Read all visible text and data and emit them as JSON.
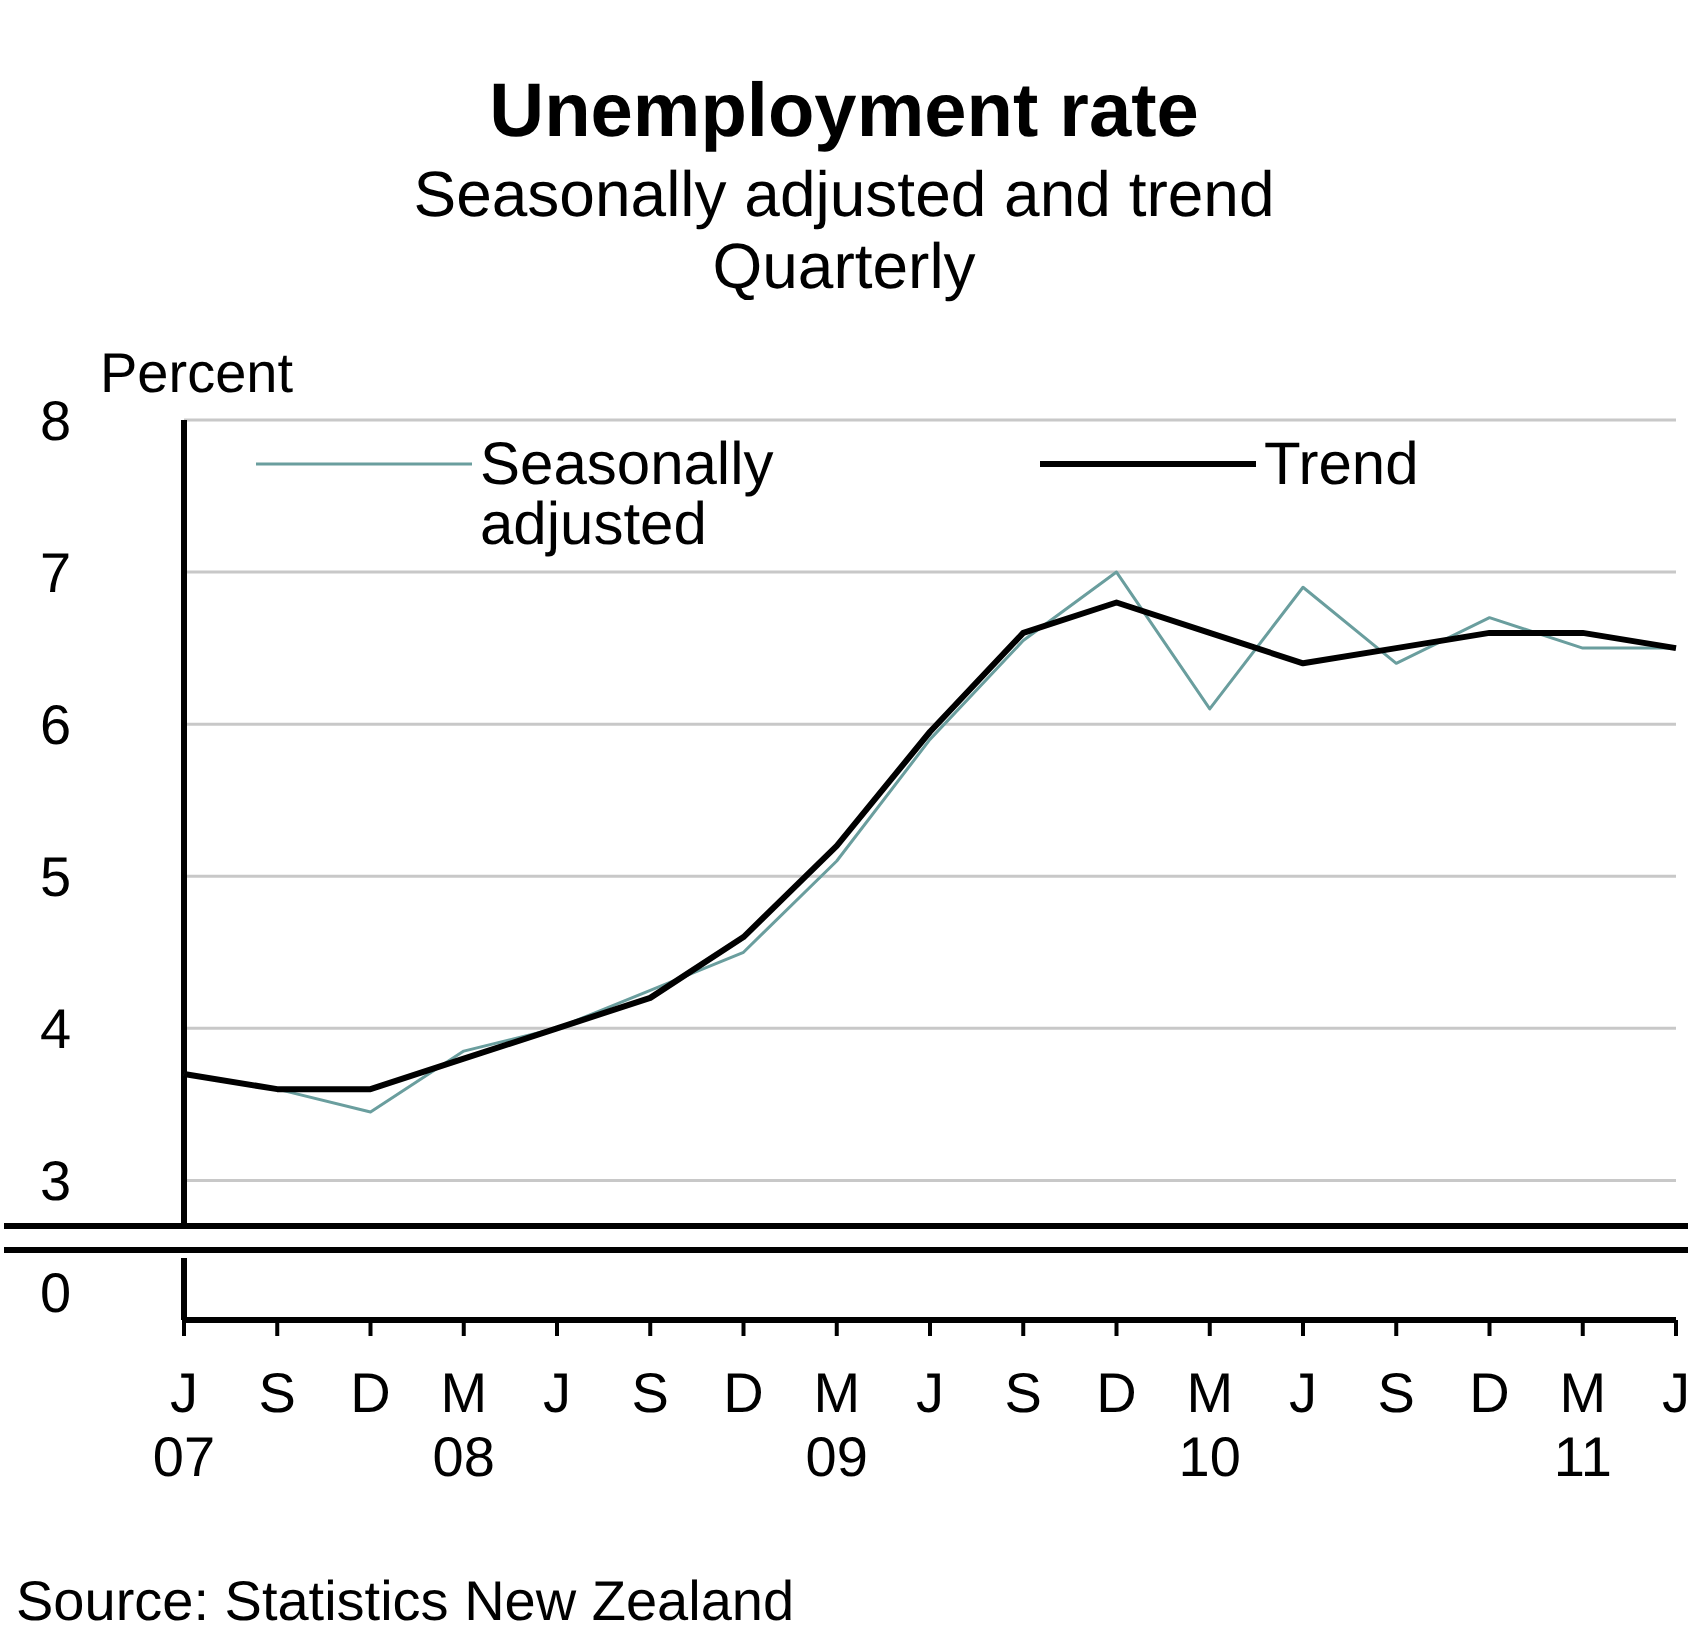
{
  "chart_data": {
    "type": "line",
    "title": "Unemployment rate",
    "subtitle": "Seasonally adjusted and trend\nQuarterly",
    "ylabel": "Percent",
    "categories": [
      "J\n07",
      "S",
      "D",
      "M\n08",
      "J",
      "S",
      "D",
      "M\n09",
      "J",
      "S",
      "D",
      "M\n10",
      "J",
      "S",
      "D",
      "M\n11",
      "J"
    ],
    "ylim": [
      2.7,
      8
    ],
    "yticks": [
      3,
      4,
      5,
      6,
      7,
      8
    ],
    "grid": "y",
    "legend": "top",
    "series": [
      {
        "name": "Seasonally adjusted",
        "color": "#6a9e9e",
        "values": [
          3.7,
          3.6,
          3.45,
          3.85,
          4.0,
          4.25,
          4.5,
          5.1,
          5.9,
          6.55,
          7.0,
          6.1,
          6.9,
          6.4,
          6.7,
          6.5,
          6.5
        ]
      },
      {
        "name": "Trend",
        "color": "#000000",
        "values": [
          3.7,
          3.6,
          3.6,
          3.8,
          4.0,
          4.2,
          4.6,
          5.2,
          5.95,
          6.6,
          6.8,
          6.6,
          6.4,
          6.5,
          6.6,
          6.6,
          6.5
        ]
      }
    ],
    "annotations": [
      "0",
      "Source: Statistics New Zealand"
    ]
  }
}
